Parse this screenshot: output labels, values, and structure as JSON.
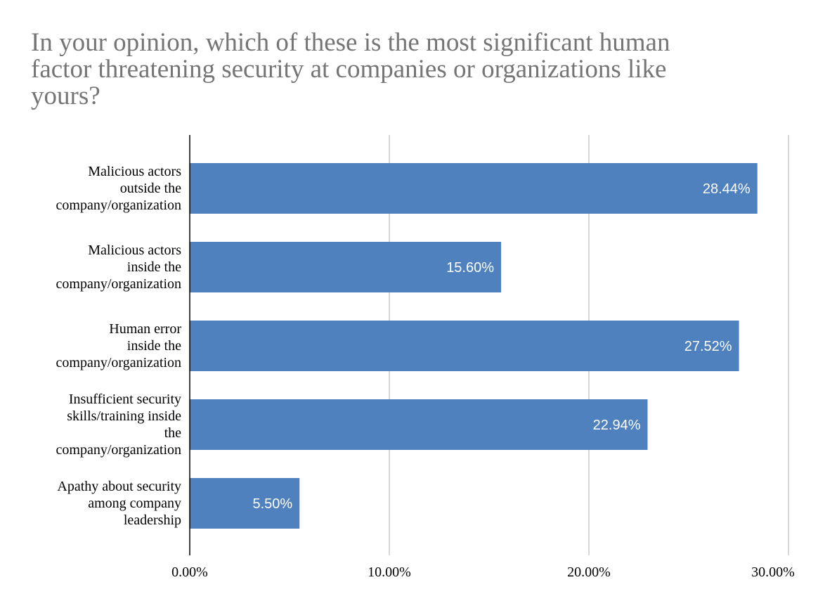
{
  "colors": {
    "bar": "#4e81bd",
    "grid": "#cccccc",
    "axis": "#000000",
    "title": "#757575"
  },
  "chart_data": {
    "type": "bar",
    "orientation": "horizontal",
    "title_lines": [
      "In your opinion, which of these is the most significant human",
      "factor threatening security at companies or organizations like",
      "yours?"
    ],
    "categories": [
      [
        "Malicious actors",
        "outside the",
        "company/organization"
      ],
      [
        "Malicious actors",
        "inside the",
        "company/organization"
      ],
      [
        "Human error",
        "inside the",
        "company/organization"
      ],
      [
        "Insufficient security",
        "skills/training inside",
        "the",
        "company/organization"
      ],
      [
        "Apathy about security",
        "among company",
        "leadership"
      ]
    ],
    "values": [
      28.44,
      15.6,
      27.52,
      22.94,
      5.5
    ],
    "value_labels": [
      "28.44%",
      "15.60%",
      "27.52%",
      "22.94%",
      "5.50%"
    ],
    "xticks": [
      0,
      10,
      20,
      30
    ],
    "xtick_labels": [
      "0.00%",
      "10.00%",
      "20.00%",
      "30.00%"
    ],
    "xlim": [
      0,
      30
    ],
    "grid": true,
    "legend": "none"
  }
}
